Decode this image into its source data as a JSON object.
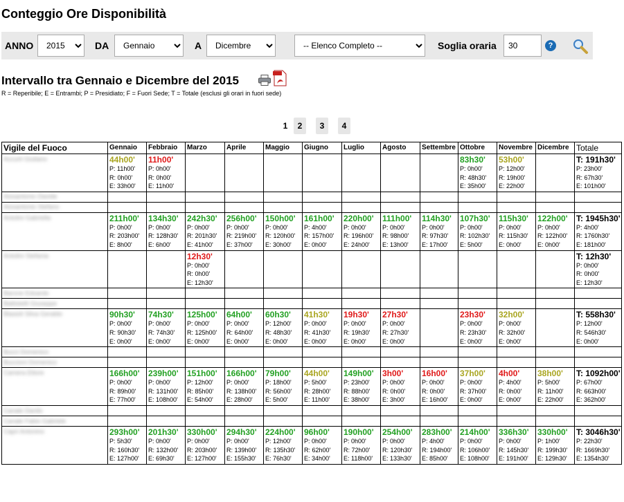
{
  "page_title": "Conteggio Ore Disponibilità",
  "filters": {
    "anno_label": "ANNO",
    "anno_value": "2015",
    "da_label": "DA",
    "da_value": "Gennaio",
    "a_label": "A",
    "a_value": "Dicembre",
    "elenco_value": "-- Elenco Completo --",
    "soglia_label": "Soglia oraria",
    "soglia_value": "30",
    "help_glyph": "?"
  },
  "subtitle": "Intervallo tra Gennaio e Dicembre del 2015",
  "legend": "R = Reperibile; E = Entrambi; P = Presidiato; F = Fuori Sede; T = Totale (esclusi gli orari in fuori sede)",
  "pagination": [
    "1",
    "2",
    "3",
    "4"
  ],
  "table": {
    "headers": [
      "Vigile del Fuoco",
      "Gennaio",
      "Febbraio",
      "Marzo",
      "Aprile",
      "Maggio",
      "Giugno",
      "Luglio",
      "Agosto",
      "Settembre",
      "Ottobre",
      "Novembre",
      "Dicembre",
      "Totale"
    ],
    "rows": [
      {
        "name": "Accurti Giuliano",
        "cells": [
          {
            "t": "44h00'",
            "c": "y",
            "p": "P: 11h00'",
            "r": "R: 0h00'",
            "e": "E: 33h00'"
          },
          {
            "t": "11h00'",
            "c": "r",
            "p": "P: 0h00'",
            "r": "R: 0h00'",
            "e": "E: 11h00'"
          },
          null,
          null,
          null,
          null,
          null,
          null,
          null,
          {
            "t": "83h30'",
            "c": "g",
            "p": "P: 0h00'",
            "r": "R: 48h30'",
            "e": "E: 35h00'"
          },
          {
            "t": "53h00'",
            "c": "y",
            "p": "P: 12h00'",
            "r": "R: 19h00'",
            "e": "E: 22h00'"
          },
          null,
          {
            "t": "T: 191h30'",
            "c": "k",
            "p": "P: 23h00'",
            "r": "R: 67h30'",
            "e": "E: 101h00'"
          }
        ]
      },
      {
        "name": "Aiosantonio Davide",
        "short": true
      },
      {
        "name": "Aiosantonio Stefano",
        "short": true
      },
      {
        "name": "Antolini Gabriella",
        "cells": [
          {
            "t": "211h00'",
            "c": "g",
            "p": "P: 0h00'",
            "r": "R: 203h00'",
            "e": "E: 8h00'"
          },
          {
            "t": "134h30'",
            "c": "g",
            "p": "P: 0h00'",
            "r": "R: 128h30'",
            "e": "E: 6h00'"
          },
          {
            "t": "242h30'",
            "c": "g",
            "p": "P: 0h00'",
            "r": "R: 201h30'",
            "e": "E: 41h00'"
          },
          {
            "t": "256h00'",
            "c": "g",
            "p": "P: 0h00'",
            "r": "R: 219h00'",
            "e": "E: 37h00'"
          },
          {
            "t": "150h00'",
            "c": "g",
            "p": "P: 0h00'",
            "r": "R: 120h00'",
            "e": "E: 30h00'"
          },
          {
            "t": "161h00'",
            "c": "g",
            "p": "P: 4h00'",
            "r": "R: 157h00'",
            "e": "E: 0h00'"
          },
          {
            "t": "220h00'",
            "c": "g",
            "p": "P: 0h00'",
            "r": "R: 196h00'",
            "e": "E: 24h00'"
          },
          {
            "t": "111h00'",
            "c": "g",
            "p": "P: 0h00'",
            "r": "R: 98h00'",
            "e": "E: 13h00'"
          },
          {
            "t": "114h30'",
            "c": "g",
            "p": "P: 0h00'",
            "r": "R: 97h30'",
            "e": "E: 17h00'"
          },
          {
            "t": "107h30'",
            "c": "g",
            "p": "P: 0h00'",
            "r": "R: 102h30'",
            "e": "E: 5h00'"
          },
          {
            "t": "115h30'",
            "c": "g",
            "p": "P: 0h00'",
            "r": "R: 115h30'",
            "e": "E: 0h00'"
          },
          {
            "t": "122h00'",
            "c": "g",
            "p": "P: 0h00'",
            "r": "R: 122h00'",
            "e": "E: 0h00'"
          },
          {
            "t": "T: 1945h30'",
            "c": "k",
            "p": "P: 4h00'",
            "r": "R: 1760h30'",
            "e": "E: 181h00'"
          }
        ]
      },
      {
        "name": "Antolini Stefania",
        "cells": [
          null,
          null,
          {
            "t": "12h30'",
            "c": "r",
            "p": "P: 0h00'",
            "r": "R: 0h00'",
            "e": "E: 12h30'"
          },
          null,
          null,
          null,
          null,
          null,
          null,
          null,
          null,
          null,
          {
            "t": "T: 12h30'",
            "c": "k",
            "p": "P: 0h00'",
            "r": "R: 0h00'",
            "e": "E: 12h30'"
          }
        ]
      },
      {
        "name": "Barone Edoardo",
        "short": true
      },
      {
        "name": "Battistelli Giuseppe",
        "short": true
      },
      {
        "name": "Blasioli Silva Geraldo",
        "cells": [
          {
            "t": "90h30'",
            "c": "g",
            "p": "P: 0h00'",
            "r": "R: 90h30'",
            "e": "E: 0h00'"
          },
          {
            "t": "74h30'",
            "c": "g",
            "p": "P: 0h00'",
            "r": "R: 74h30'",
            "e": "E: 0h00'"
          },
          {
            "t": "125h00'",
            "c": "g",
            "p": "P: 0h00'",
            "r": "R: 125h00'",
            "e": "E: 0h00'"
          },
          {
            "t": "64h00'",
            "c": "g",
            "p": "P: 0h00'",
            "r": "R: 64h00'",
            "e": "E: 0h00'"
          },
          {
            "t": "60h30'",
            "c": "g",
            "p": "P: 12h00'",
            "r": "R: 48h30'",
            "e": "E: 0h00'"
          },
          {
            "t": "41h30'",
            "c": "y",
            "p": "P: 0h00'",
            "r": "R: 41h30'",
            "e": "E: 0h00'"
          },
          {
            "t": "19h30'",
            "c": "r",
            "p": "P: 0h00'",
            "r": "R: 19h30'",
            "e": "E: 0h00'"
          },
          {
            "t": "27h30'",
            "c": "r",
            "p": "P: 0h00'",
            "r": "R: 27h30'",
            "e": "E: 0h00'"
          },
          null,
          {
            "t": "23h30'",
            "c": "r",
            "p": "P: 0h00'",
            "r": "R: 23h30'",
            "e": "E: 0h00'"
          },
          {
            "t": "32h00'",
            "c": "y",
            "p": "P: 0h00'",
            "r": "R: 32h00'",
            "e": "E: 0h00'"
          },
          null,
          {
            "t": "T: 558h30'",
            "c": "k",
            "p": "P: 12h00'",
            "r": "R: 546h30'",
            "e": "E: 0h00'"
          }
        ]
      },
      {
        "name": "Bucci Domenico",
        "short": true
      },
      {
        "name": "Buccioni Domenico",
        "short": true
      },
      {
        "name": "Camera Ettore",
        "cells": [
          {
            "t": "166h00'",
            "c": "g",
            "p": "P: 0h00'",
            "r": "R: 89h00'",
            "e": "E: 77h00'"
          },
          {
            "t": "239h00'",
            "c": "g",
            "p": "P: 0h00'",
            "r": "R: 131h00'",
            "e": "E: 108h00'"
          },
          {
            "t": "151h00'",
            "c": "g",
            "p": "P: 12h00'",
            "r": "R: 85h00'",
            "e": "E: 54h00'"
          },
          {
            "t": "166h00'",
            "c": "g",
            "p": "P: 0h00'",
            "r": "R: 138h00'",
            "e": "E: 28h00'"
          },
          {
            "t": "79h00'",
            "c": "g",
            "p": "P: 18h00'",
            "r": "R: 56h00'",
            "e": "E: 5h00'"
          },
          {
            "t": "44h00'",
            "c": "y",
            "p": "P: 5h00'",
            "r": "R: 28h00'",
            "e": "E: 11h00'"
          },
          {
            "t": "149h00'",
            "c": "g",
            "p": "P: 23h00'",
            "r": "R: 88h00'",
            "e": "E: 38h00'"
          },
          {
            "t": "3h00'",
            "c": "r",
            "p": "P: 0h00'",
            "r": "R: 0h00'",
            "e": "E: 3h00'"
          },
          {
            "t": "16h00'",
            "c": "r",
            "p": "P: 0h00'",
            "r": "R: 0h00'",
            "e": "E: 16h00'"
          },
          {
            "t": "37h00'",
            "c": "y",
            "p": "P: 0h00'",
            "r": "R: 37h00'",
            "e": "E: 0h00'"
          },
          {
            "t": "4h00'",
            "c": "r",
            "p": "P: 4h00'",
            "r": "R: 0h00'",
            "e": "E: 0h00'"
          },
          {
            "t": "38h00'",
            "c": "y",
            "p": "P: 5h00'",
            "r": "R: 11h00'",
            "e": "E: 22h00'"
          },
          {
            "t": "T: 1092h00'",
            "c": "k",
            "p": "P: 67h00'",
            "r": "R: 663h00'",
            "e": "E: 362h00'"
          }
        ]
      },
      {
        "name": "Canale Danilo",
        "short": true
      },
      {
        "name": "Canale Fabio Gabriele",
        "short": true
      },
      {
        "name": "Capri Antonino",
        "cells": [
          {
            "t": "293h00'",
            "c": "g",
            "p": "P: 5h30'",
            "r": "R: 160h30'",
            "e": "E: 127h00'"
          },
          {
            "t": "201h30'",
            "c": "g",
            "p": "P: 0h00'",
            "r": "R: 132h00'",
            "e": "E: 69h30'"
          },
          {
            "t": "330h00'",
            "c": "g",
            "p": "P: 0h00'",
            "r": "R: 203h00'",
            "e": "E: 127h00'"
          },
          {
            "t": "294h30'",
            "c": "g",
            "p": "P: 0h00'",
            "r": "R: 139h00'",
            "e": "E: 155h30'"
          },
          {
            "t": "224h00'",
            "c": "g",
            "p": "P: 12h00'",
            "r": "R: 135h30'",
            "e": "E: 76h30'"
          },
          {
            "t": "96h00'",
            "c": "g",
            "p": "P: 0h00'",
            "r": "R: 62h00'",
            "e": "E: 34h00'"
          },
          {
            "t": "190h00'",
            "c": "g",
            "p": "P: 0h00'",
            "r": "R: 72h00'",
            "e": "E: 118h00'"
          },
          {
            "t": "254h00'",
            "c": "g",
            "p": "P: 0h00'",
            "r": "R: 120h30'",
            "e": "E: 133h30'"
          },
          {
            "t": "283h00'",
            "c": "g",
            "p": "P: 4h00'",
            "r": "R: 194h00'",
            "e": "E: 85h00'"
          },
          {
            "t": "214h00'",
            "c": "g",
            "p": "P: 0h00'",
            "r": "R: 106h00'",
            "e": "E: 108h00'"
          },
          {
            "t": "336h30'",
            "c": "g",
            "p": "P: 0h00'",
            "r": "R: 145h30'",
            "e": "E: 191h00'"
          },
          {
            "t": "330h00'",
            "c": "g",
            "p": "P: 1h00'",
            "r": "R: 199h30'",
            "e": "E: 129h30'"
          },
          {
            "t": "T: 3046h30'",
            "c": "k",
            "p": "P: 22h30'",
            "r": "R: 1669h30'",
            "e": "E: 1354h30'"
          }
        ]
      }
    ]
  }
}
